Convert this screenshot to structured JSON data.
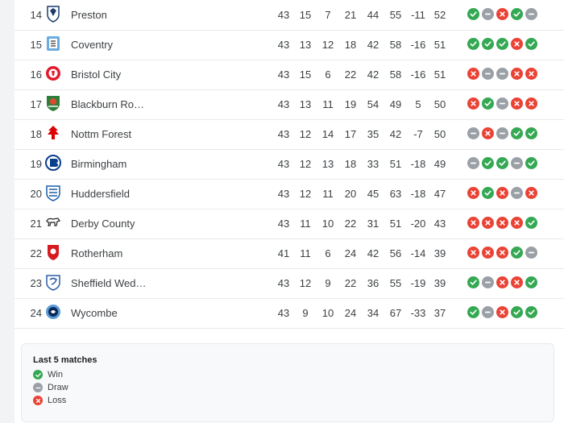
{
  "colors": {
    "win": "#34a853",
    "draw": "#9aa0a6",
    "loss": "#ea4335"
  },
  "rows": [
    {
      "pos": "14",
      "team": "Preston",
      "crest": "preston-crest",
      "p": "43",
      "w": "15",
      "d": "7",
      "l": "21",
      "gf": "44",
      "ga": "55",
      "gd": "-11",
      "pts": "52",
      "form": [
        "W",
        "D",
        "L",
        "W",
        "D"
      ]
    },
    {
      "pos": "15",
      "team": "Coventry",
      "crest": "coventry-crest",
      "p": "43",
      "w": "13",
      "d": "12",
      "l": "18",
      "gf": "42",
      "ga": "58",
      "gd": "-16",
      "pts": "51",
      "form": [
        "W",
        "W",
        "W",
        "L",
        "W"
      ]
    },
    {
      "pos": "16",
      "team": "Bristol City",
      "crest": "bristol-city-crest",
      "p": "43",
      "w": "15",
      "d": "6",
      "l": "22",
      "gf": "42",
      "ga": "58",
      "gd": "-16",
      "pts": "51",
      "form": [
        "L",
        "D",
        "D",
        "L",
        "L"
      ]
    },
    {
      "pos": "17",
      "team": "Blackburn Ro…",
      "crest": "blackburn-crest",
      "p": "43",
      "w": "13",
      "d": "11",
      "l": "19",
      "gf": "54",
      "ga": "49",
      "gd": "5",
      "pts": "50",
      "form": [
        "L",
        "W",
        "D",
        "L",
        "L"
      ]
    },
    {
      "pos": "18",
      "team": "Nottm Forest",
      "crest": "nottm-forest-crest",
      "p": "43",
      "w": "12",
      "d": "14",
      "l": "17",
      "gf": "35",
      "ga": "42",
      "gd": "-7",
      "pts": "50",
      "form": [
        "D",
        "L",
        "D",
        "W",
        "W"
      ]
    },
    {
      "pos": "19",
      "team": "Birmingham",
      "crest": "birmingham-crest",
      "p": "43",
      "w": "12",
      "d": "13",
      "l": "18",
      "gf": "33",
      "ga": "51",
      "gd": "-18",
      "pts": "49",
      "form": [
        "D",
        "W",
        "W",
        "D",
        "W"
      ]
    },
    {
      "pos": "20",
      "team": "Huddersfield",
      "crest": "huddersfield-crest",
      "p": "43",
      "w": "12",
      "d": "11",
      "l": "20",
      "gf": "45",
      "ga": "63",
      "gd": "-18",
      "pts": "47",
      "form": [
        "L",
        "W",
        "L",
        "D",
        "L"
      ]
    },
    {
      "pos": "21",
      "team": "Derby County",
      "crest": "derby-crest",
      "p": "43",
      "w": "11",
      "d": "10",
      "l": "22",
      "gf": "31",
      "ga": "51",
      "gd": "-20",
      "pts": "43",
      "form": [
        "L",
        "L",
        "L",
        "L",
        "W"
      ]
    },
    {
      "pos": "22",
      "team": "Rotherham",
      "crest": "rotherham-crest",
      "p": "41",
      "w": "11",
      "d": "6",
      "l": "24",
      "gf": "42",
      "ga": "56",
      "gd": "-14",
      "pts": "39",
      "form": [
        "L",
        "L",
        "L",
        "W",
        "D"
      ]
    },
    {
      "pos": "23",
      "team": "Sheffield Wed…",
      "crest": "sheffield-wed-crest",
      "p": "43",
      "w": "12",
      "d": "9",
      "l": "22",
      "gf": "36",
      "ga": "55",
      "gd": "-19",
      "pts": "39",
      "form": [
        "W",
        "D",
        "L",
        "L",
        "W"
      ]
    },
    {
      "pos": "24",
      "team": "Wycombe",
      "crest": "wycombe-crest",
      "p": "43",
      "w": "9",
      "d": "10",
      "l": "24",
      "gf": "34",
      "ga": "67",
      "gd": "-33",
      "pts": "37",
      "form": [
        "W",
        "D",
        "L",
        "W",
        "W"
      ]
    }
  ],
  "legend": {
    "title": "Last 5 matches",
    "win": "Win",
    "draw": "Draw",
    "loss": "Loss"
  }
}
